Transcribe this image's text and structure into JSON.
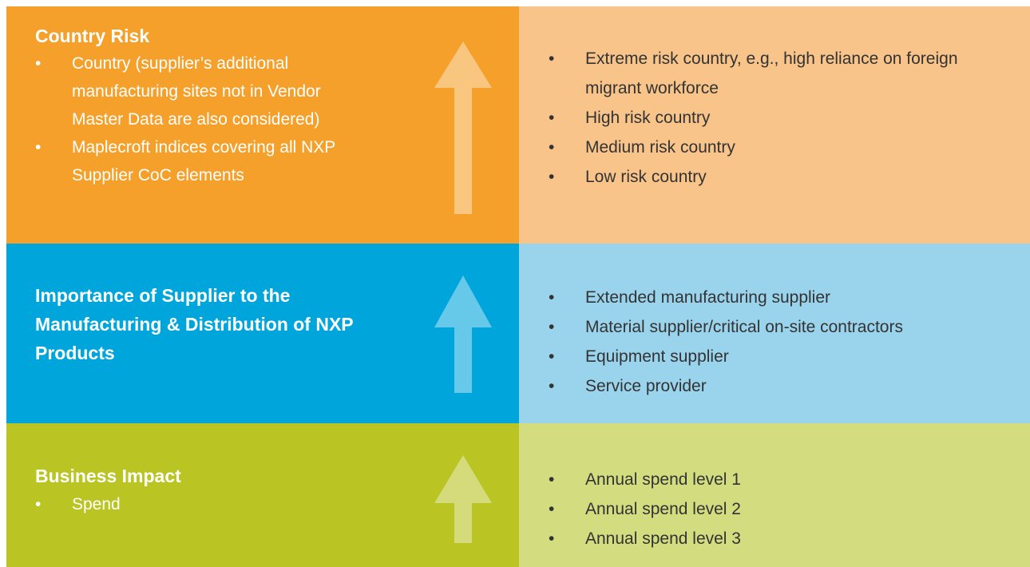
{
  "rows": [
    {
      "title": "Country Risk",
      "items": [
        "Country (supplier’s additional manufacturing sites not in Vendor Master Data are also considered)",
        "Maplecroft indices covering all NXP Supplier CoC elements"
      ],
      "details": [
        "Extreme risk country, e.g., high reliance on foreign migrant workforce",
        "High risk country",
        "Medium risk country",
        "Low risk country"
      ]
    },
    {
      "title": "Importance of Supplier to the Manufacturing & Distribution of NXP Products",
      "items": [],
      "details": [
        "Extended manufacturing supplier",
        "Material supplier/critical on-site contractors",
        "Equipment supplier",
        "Service provider"
      ]
    },
    {
      "title": "Business Impact",
      "items": [
        "Spend"
      ],
      "details": [
        "Annual spend level 1",
        "Annual spend level 2",
        "Annual spend level 3"
      ]
    }
  ]
}
